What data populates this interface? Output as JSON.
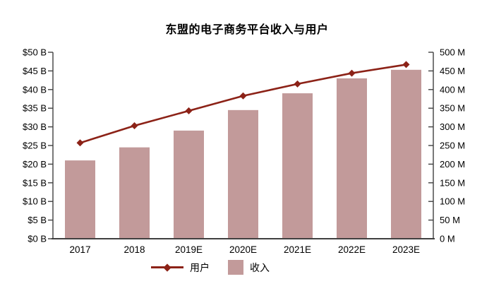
{
  "title": "东盟的电子商务平台收入与用户",
  "colors": {
    "bar": "#c29a9a",
    "line": "#8c2217",
    "axis": "#404040",
    "text": "#000000"
  },
  "legend": {
    "users_label": "用户",
    "revenue_label": "收入"
  },
  "chart_data": {
    "type": "bar+line combo",
    "title": "东盟的电子商务平台收入与用户",
    "categories": [
      "2017",
      "2018",
      "2019E",
      "2020E",
      "2021E",
      "2022E",
      "2023E"
    ],
    "series": [
      {
        "name": "收入",
        "type": "bar",
        "axis": "left",
        "unit": "$ B",
        "values": [
          21.0,
          24.5,
          29.0,
          34.5,
          39.0,
          43.0,
          45.3
        ]
      },
      {
        "name": "用户",
        "type": "line",
        "axis": "right",
        "unit": "M",
        "values": [
          257,
          303,
          343,
          383,
          415,
          444,
          467
        ]
      }
    ],
    "left_axis": {
      "min": 0,
      "max": 50,
      "step": 5,
      "ticks": [
        "$0 B",
        "$5 B",
        "$10 B",
        "$15 B",
        "$20 B",
        "$25 B",
        "$30 B",
        "$35 B",
        "$40 B",
        "$45 B",
        "$50 B"
      ]
    },
    "right_axis": {
      "min": 0,
      "max": 500,
      "step": 50,
      "ticks": [
        "0 M",
        "50 M",
        "100 M",
        "150 M",
        "200 M",
        "250 M",
        "300 M",
        "350 M",
        "400 M",
        "450 M",
        "500 M"
      ]
    },
    "grid": false,
    "legend_position": "bottom"
  }
}
